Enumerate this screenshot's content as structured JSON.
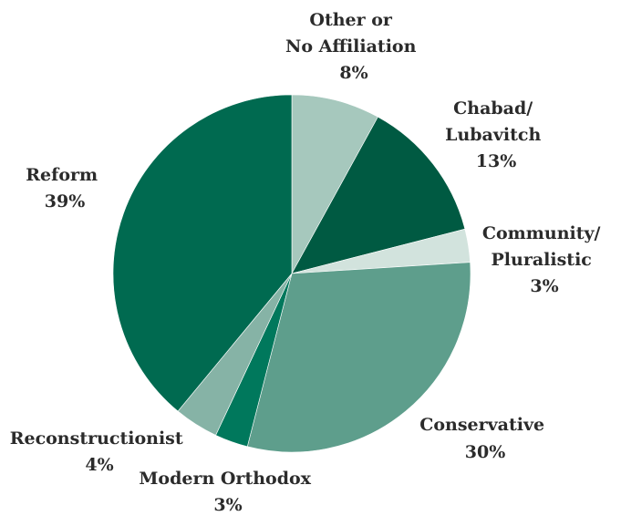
{
  "chart_data": {
    "type": "pie",
    "start_angle_deg": 0,
    "direction": "clockwise",
    "slices": [
      {
        "label_lines": [
          "Other or",
          "No Affiliation"
        ],
        "value_text": "8%",
        "value": 8,
        "color": "#a6c8bd"
      },
      {
        "label_lines": [
          "Chabad/",
          "Lubavitch"
        ],
        "value_text": "13%",
        "value": 13,
        "color": "#005a42"
      },
      {
        "label_lines": [
          "Community/",
          "Pluralistic"
        ],
        "value_text": "3%",
        "value": 3,
        "color": "#d2e3dd"
      },
      {
        "label_lines": [
          "Conservative"
        ],
        "value_text": "30%",
        "value": 30,
        "color": "#5e9e8c"
      },
      {
        "label_lines": [
          "Modern Orthodox"
        ],
        "value_text": "3%",
        "value": 3,
        "color": "#00785c"
      },
      {
        "label_lines": [
          "Reconstructionist"
        ],
        "value_text": "4%",
        "value": 4,
        "color": "#86b3a6"
      },
      {
        "label_lines": [
          "Reform"
        ],
        "value_text": "39%",
        "value": 39,
        "color": "#006a50"
      }
    ]
  }
}
